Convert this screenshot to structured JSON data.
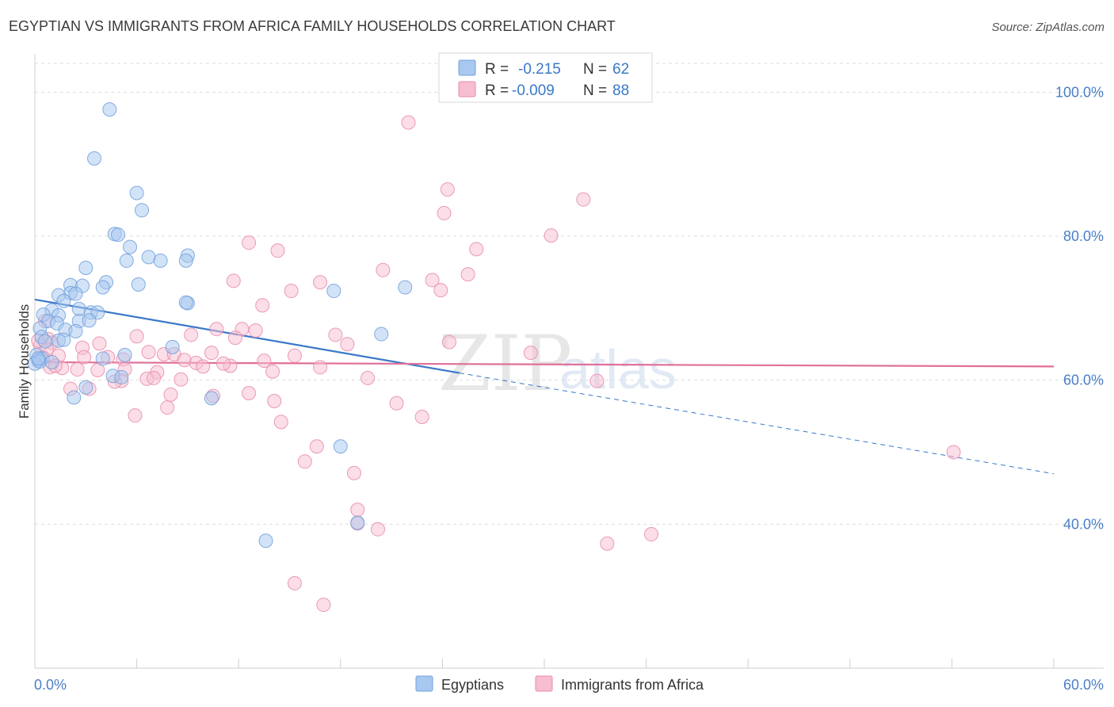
{
  "chart_data": {
    "type": "scatter",
    "title": "EGYPTIAN VS IMMIGRANTS FROM AFRICA FAMILY HOUSEHOLDS CORRELATION CHART",
    "source": "Source: ZipAtlas.com",
    "ylabel": "Family Households",
    "xlabel": "",
    "xlim": [
      0,
      60
    ],
    "ylim": [
      20,
      104
    ],
    "x_tick_labels": [
      "0.0%",
      "60.0%"
    ],
    "y_ticks": [
      40,
      60,
      80,
      100
    ],
    "y_tick_labels": [
      "40.0%",
      "60.0%",
      "80.0%",
      "100.0%"
    ],
    "grid": true,
    "legend_position": "bottom",
    "watermark": {
      "zip": "ZIP",
      "atlas": "atlas"
    },
    "colors": {
      "egyptians_fill": "#a8c8f0",
      "egyptians_stroke": "#6f9fdc",
      "egyptians_line": "#3a78c9",
      "africa_fill": "#f7bdd0",
      "africa_stroke": "#e88aab",
      "africa_line": "#e07099",
      "tick_label": "#4a7fc7"
    },
    "stats": [
      {
        "r_label": "R =",
        "r_value": "-0.215",
        "n_label": "N =",
        "n_value": "62"
      },
      {
        "r_label": "R =",
        "r_value": "-0.009",
        "n_label": "N =",
        "n_value": "88"
      }
    ],
    "series": [
      {
        "name": "Egyptians",
        "trend": {
          "x": [
            0,
            25,
            60
          ],
          "y": [
            71.2,
            61.0,
            47.0
          ],
          "solid_until": 25
        },
        "points": [
          [
            4.4,
            97.6
          ],
          [
            3.5,
            90.8
          ],
          [
            6.0,
            86.0
          ],
          [
            6.3,
            83.6
          ],
          [
            4.7,
            80.3
          ],
          [
            4.9,
            80.2
          ],
          [
            5.6,
            78.5
          ],
          [
            6.7,
            77.1
          ],
          [
            9.0,
            77.3
          ],
          [
            5.4,
            76.6
          ],
          [
            7.4,
            76.6
          ],
          [
            8.9,
            76.6
          ],
          [
            3.0,
            75.6
          ],
          [
            4.2,
            73.6
          ],
          [
            2.1,
            73.2
          ],
          [
            2.8,
            73.1
          ],
          [
            4.0,
            72.9
          ],
          [
            6.1,
            73.3
          ],
          [
            17.6,
            72.4
          ],
          [
            21.8,
            72.9
          ],
          [
            2.1,
            72.1
          ],
          [
            2.4,
            72.0
          ],
          [
            1.4,
            71.8
          ],
          [
            1.7,
            71.0
          ],
          [
            9.0,
            70.7
          ],
          [
            8.9,
            70.8
          ],
          [
            1.0,
            69.7
          ],
          [
            2.6,
            69.9
          ],
          [
            3.3,
            69.4
          ],
          [
            3.7,
            69.4
          ],
          [
            0.5,
            69.1
          ],
          [
            1.4,
            69.0
          ],
          [
            0.8,
            68.2
          ],
          [
            1.3,
            67.9
          ],
          [
            2.6,
            68.2
          ],
          [
            3.2,
            68.3
          ],
          [
            0.3,
            67.2
          ],
          [
            1.8,
            67.0
          ],
          [
            2.4,
            66.8
          ],
          [
            20.4,
            66.4
          ],
          [
            0.4,
            66.0
          ],
          [
            0.6,
            65.4
          ],
          [
            1.4,
            65.5
          ],
          [
            1.7,
            65.6
          ],
          [
            8.1,
            64.6
          ],
          [
            5.3,
            63.5
          ],
          [
            4.0,
            63.0
          ],
          [
            0.1,
            63.5
          ],
          [
            0.4,
            63.0
          ],
          [
            0.2,
            62.7
          ],
          [
            0.0,
            62.3
          ],
          [
            0.3,
            62.6
          ],
          [
            4.6,
            60.6
          ],
          [
            5.1,
            60.4
          ],
          [
            3.0,
            59.0
          ],
          [
            2.3,
            57.6
          ],
          [
            10.4,
            57.5
          ],
          [
            18.0,
            50.8
          ],
          [
            19.0,
            40.2
          ],
          [
            13.6,
            37.7
          ],
          [
            0.2,
            63.0
          ],
          [
            1.0,
            62.5
          ]
        ]
      },
      {
        "name": "Immigrants from Africa",
        "trend": {
          "x": [
            0,
            60
          ],
          "y": [
            62.5,
            61.9
          ],
          "solid_until": 60
        },
        "points": [
          [
            22.0,
            95.8
          ],
          [
            24.3,
            86.5
          ],
          [
            24.1,
            83.2
          ],
          [
            32.3,
            85.1
          ],
          [
            30.4,
            80.1
          ],
          [
            12.6,
            79.1
          ],
          [
            14.3,
            78.0
          ],
          [
            26.0,
            78.2
          ],
          [
            20.5,
            75.3
          ],
          [
            25.5,
            74.7
          ],
          [
            11.7,
            73.8
          ],
          [
            16.8,
            73.6
          ],
          [
            23.4,
            73.9
          ],
          [
            15.1,
            72.4
          ],
          [
            23.9,
            72.5
          ],
          [
            13.4,
            70.4
          ],
          [
            0.6,
            68.2
          ],
          [
            10.7,
            67.1
          ],
          [
            12.2,
            67.1
          ],
          [
            13.0,
            66.9
          ],
          [
            17.7,
            66.3
          ],
          [
            6.0,
            66.1
          ],
          [
            11.8,
            65.9
          ],
          [
            9.2,
            66.3
          ],
          [
            0.8,
            65.7
          ],
          [
            1.0,
            65.2
          ],
          [
            3.8,
            65.1
          ],
          [
            18.4,
            65.0
          ],
          [
            24.4,
            65.3
          ],
          [
            0.3,
            64.8
          ],
          [
            0.7,
            64.3
          ],
          [
            2.8,
            64.5
          ],
          [
            6.7,
            63.9
          ],
          [
            7.6,
            63.6
          ],
          [
            8.2,
            63.6
          ],
          [
            10.4,
            63.8
          ],
          [
            15.3,
            63.4
          ],
          [
            29.2,
            63.8
          ],
          [
            1.4,
            63.4
          ],
          [
            2.9,
            63.2
          ],
          [
            4.3,
            63.2
          ],
          [
            5.2,
            62.9
          ],
          [
            8.8,
            62.8
          ],
          [
            13.5,
            62.7
          ],
          [
            9.5,
            62.4
          ],
          [
            11.5,
            62.0
          ],
          [
            11.1,
            62.3
          ],
          [
            9.9,
            61.9
          ],
          [
            16.8,
            61.8
          ],
          [
            0.9,
            61.8
          ],
          [
            1.6,
            61.7
          ],
          [
            2.5,
            61.5
          ],
          [
            3.7,
            61.4
          ],
          [
            5.3,
            61.5
          ],
          [
            7.2,
            61.1
          ],
          [
            14.0,
            61.2
          ],
          [
            6.6,
            60.2
          ],
          [
            7.0,
            60.3
          ],
          [
            8.6,
            60.1
          ],
          [
            5.1,
            59.9
          ],
          [
            19.6,
            60.3
          ],
          [
            33.1,
            59.9
          ],
          [
            2.1,
            58.8
          ],
          [
            3.2,
            58.8
          ],
          [
            12.6,
            58.2
          ],
          [
            8.0,
            58.0
          ],
          [
            10.5,
            57.8
          ],
          [
            14.1,
            57.1
          ],
          [
            21.3,
            56.8
          ],
          [
            7.8,
            56.2
          ],
          [
            5.9,
            55.1
          ],
          [
            22.8,
            54.9
          ],
          [
            14.5,
            54.2
          ],
          [
            16.6,
            50.8
          ],
          [
            15.9,
            48.7
          ],
          [
            18.8,
            47.1
          ],
          [
            54.1,
            50.0
          ],
          [
            19.0,
            42.0
          ],
          [
            19.0,
            40.1
          ],
          [
            20.2,
            39.3
          ],
          [
            36.3,
            38.6
          ],
          [
            33.7,
            37.3
          ],
          [
            15.3,
            31.8
          ],
          [
            17.0,
            28.8
          ],
          [
            0.2,
            65.5
          ],
          [
            0.5,
            63.1
          ],
          [
            1.2,
            62.0
          ],
          [
            4.7,
            59.8
          ]
        ]
      }
    ]
  }
}
